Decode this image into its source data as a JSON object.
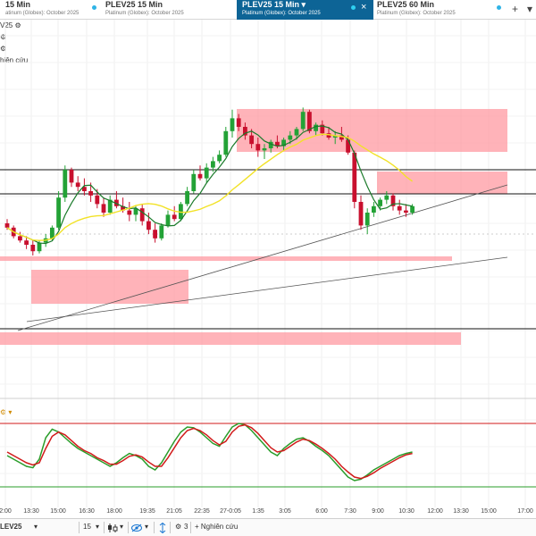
{
  "tabs": [
    {
      "title": "15 Min",
      "subtitle": "atinum (Globex): October 2025",
      "active": false
    },
    {
      "title": "PLEV25 15 Min",
      "subtitle": "Platinum (Globex): October 2025",
      "active": false
    },
    {
      "title": "PLEV25 15 Min",
      "subtitle": "Platinum (Globex): October 2025",
      "active": true
    },
    {
      "title": "PLEV25 60 Min",
      "subtitle": "Platinum (Globex): October 2025",
      "active": false
    }
  ],
  "tab_controls": {
    "add": "+",
    "expand": "▾",
    "close": "×"
  },
  "side_labels": {
    "study_short": "V25",
    "research": "hiên cứu",
    "gear_glyph": "⚙",
    "dropdown_glyph": "▾"
  },
  "toolbar": {
    "symbol": "LEV25",
    "interval": "15",
    "drawing_count": "3",
    "research_button": "+ Nghiên cứu",
    "chevron": "▾"
  },
  "colors": {
    "bull": "#23a236",
    "bear": "#c8102e",
    "zone": "#ff9aa2",
    "ma_fast": "#1a7a2a",
    "ma_slow": "#f2e227",
    "stoch_k": "#2a9d2a",
    "stoch_d": "#d11a1a",
    "accent": "#0d6496"
  },
  "chart_data": {
    "type": "candlestick",
    "instrument": "PLEV25",
    "timeframe": "15 Min",
    "x_ticks": [
      "2:00",
      "13:30",
      "15:00",
      "16:30",
      "18:00",
      "19:35",
      "21:05",
      "22:35",
      "27-0:05",
      "1:35",
      "3:05",
      "6:00",
      "7:30",
      "9:00",
      "10:30",
      "12:00",
      "13:30",
      "15:00",
      "17:00"
    ],
    "price_range": [
      0,
      100
    ],
    "candles": [
      [
        45,
        47,
        42,
        43
      ],
      [
        43,
        44,
        38,
        39
      ],
      [
        39,
        41,
        36,
        37
      ],
      [
        37,
        39,
        33,
        35
      ],
      [
        35,
        37,
        30,
        32
      ],
      [
        32,
        37,
        31,
        36
      ],
      [
        36,
        40,
        34,
        38
      ],
      [
        38,
        44,
        37,
        43
      ],
      [
        43,
        60,
        42,
        57
      ],
      [
        57,
        72,
        55,
        70
      ],
      [
        70,
        71,
        62,
        64
      ],
      [
        64,
        67,
        60,
        62
      ],
      [
        62,
        66,
        58,
        60
      ],
      [
        60,
        64,
        55,
        58
      ],
      [
        58,
        61,
        52,
        54
      ],
      [
        54,
        57,
        48,
        50
      ],
      [
        50,
        58,
        49,
        56
      ],
      [
        56,
        60,
        52,
        53
      ],
      [
        53,
        57,
        50,
        51
      ],
      [
        51,
        55,
        46,
        49
      ],
      [
        49,
        53,
        46,
        52
      ],
      [
        52,
        54,
        44,
        46
      ],
      [
        46,
        50,
        40,
        42
      ],
      [
        42,
        45,
        36,
        38
      ],
      [
        38,
        45,
        37,
        44
      ],
      [
        44,
        51,
        43,
        49
      ],
      [
        49,
        53,
        46,
        47
      ],
      [
        47,
        55,
        46,
        54
      ],
      [
        54,
        62,
        53,
        60
      ],
      [
        60,
        70,
        59,
        68
      ],
      [
        68,
        72,
        65,
        66
      ],
      [
        66,
        73,
        64,
        71
      ],
      [
        71,
        76,
        69,
        74
      ],
      [
        74,
        79,
        73,
        77
      ],
      [
        77,
        90,
        76,
        88
      ],
      [
        88,
        98,
        85,
        94
      ],
      [
        94,
        96,
        88,
        90
      ],
      [
        90,
        92,
        84,
        86
      ],
      [
        86,
        89,
        80,
        82
      ],
      [
        82,
        85,
        76,
        79
      ],
      [
        79,
        82,
        75,
        80
      ],
      [
        80,
        84,
        78,
        83
      ],
      [
        83,
        86,
        80,
        81
      ],
      [
        81,
        85,
        79,
        84
      ],
      [
        84,
        88,
        82,
        86
      ],
      [
        86,
        90,
        84,
        89
      ],
      [
        89,
        99,
        88,
        97
      ],
      [
        97,
        98,
        87,
        88
      ],
      [
        88,
        92,
        86,
        91
      ],
      [
        91,
        93,
        86,
        87
      ],
      [
        87,
        90,
        84,
        85
      ],
      [
        85,
        88,
        82,
        86
      ],
      [
        86,
        90,
        83,
        84
      ],
      [
        84,
        86,
        77,
        78
      ],
      [
        78,
        79,
        52,
        55
      ],
      [
        55,
        58,
        42,
        44
      ],
      [
        44,
        52,
        40,
        50
      ],
      [
        50,
        55,
        48,
        53
      ],
      [
        53,
        57,
        51,
        56
      ],
      [
        56,
        60,
        54,
        58
      ],
      [
        58,
        59,
        51,
        53
      ],
      [
        53,
        56,
        49,
        51
      ],
      [
        51,
        54,
        48,
        50
      ],
      [
        50,
        54,
        49,
        53
      ]
    ],
    "stochastic": {
      "k": [
        45,
        40,
        35,
        30,
        28,
        40,
        70,
        82,
        78,
        70,
        62,
        55,
        50,
        45,
        40,
        35,
        30,
        35,
        42,
        48,
        45,
        40,
        30,
        25,
        35,
        50,
        65,
        78,
        85,
        84,
        78,
        70,
        62,
        58,
        72,
        85,
        90,
        88,
        80,
        70,
        60,
        50,
        45,
        55,
        62,
        68,
        70,
        65,
        58,
        52,
        45,
        35,
        25,
        15,
        10,
        12,
        18,
        25,
        30,
        35,
        40,
        45,
        48,
        50
      ],
      "d": [
        50,
        45,
        40,
        35,
        32,
        35,
        55,
        72,
        78,
        74,
        66,
        58,
        52,
        48,
        42,
        38,
        33,
        33,
        38,
        44,
        46,
        43,
        36,
        30,
        30,
        42,
        56,
        70,
        80,
        83,
        80,
        74,
        66,
        60,
        65,
        78,
        86,
        88,
        84,
        76,
        66,
        56,
        50,
        52,
        58,
        64,
        68,
        66,
        61,
        55,
        48,
        40,
        30,
        22,
        15,
        13,
        16,
        21,
        27,
        32,
        37,
        42,
        46,
        48
      ]
    }
  }
}
